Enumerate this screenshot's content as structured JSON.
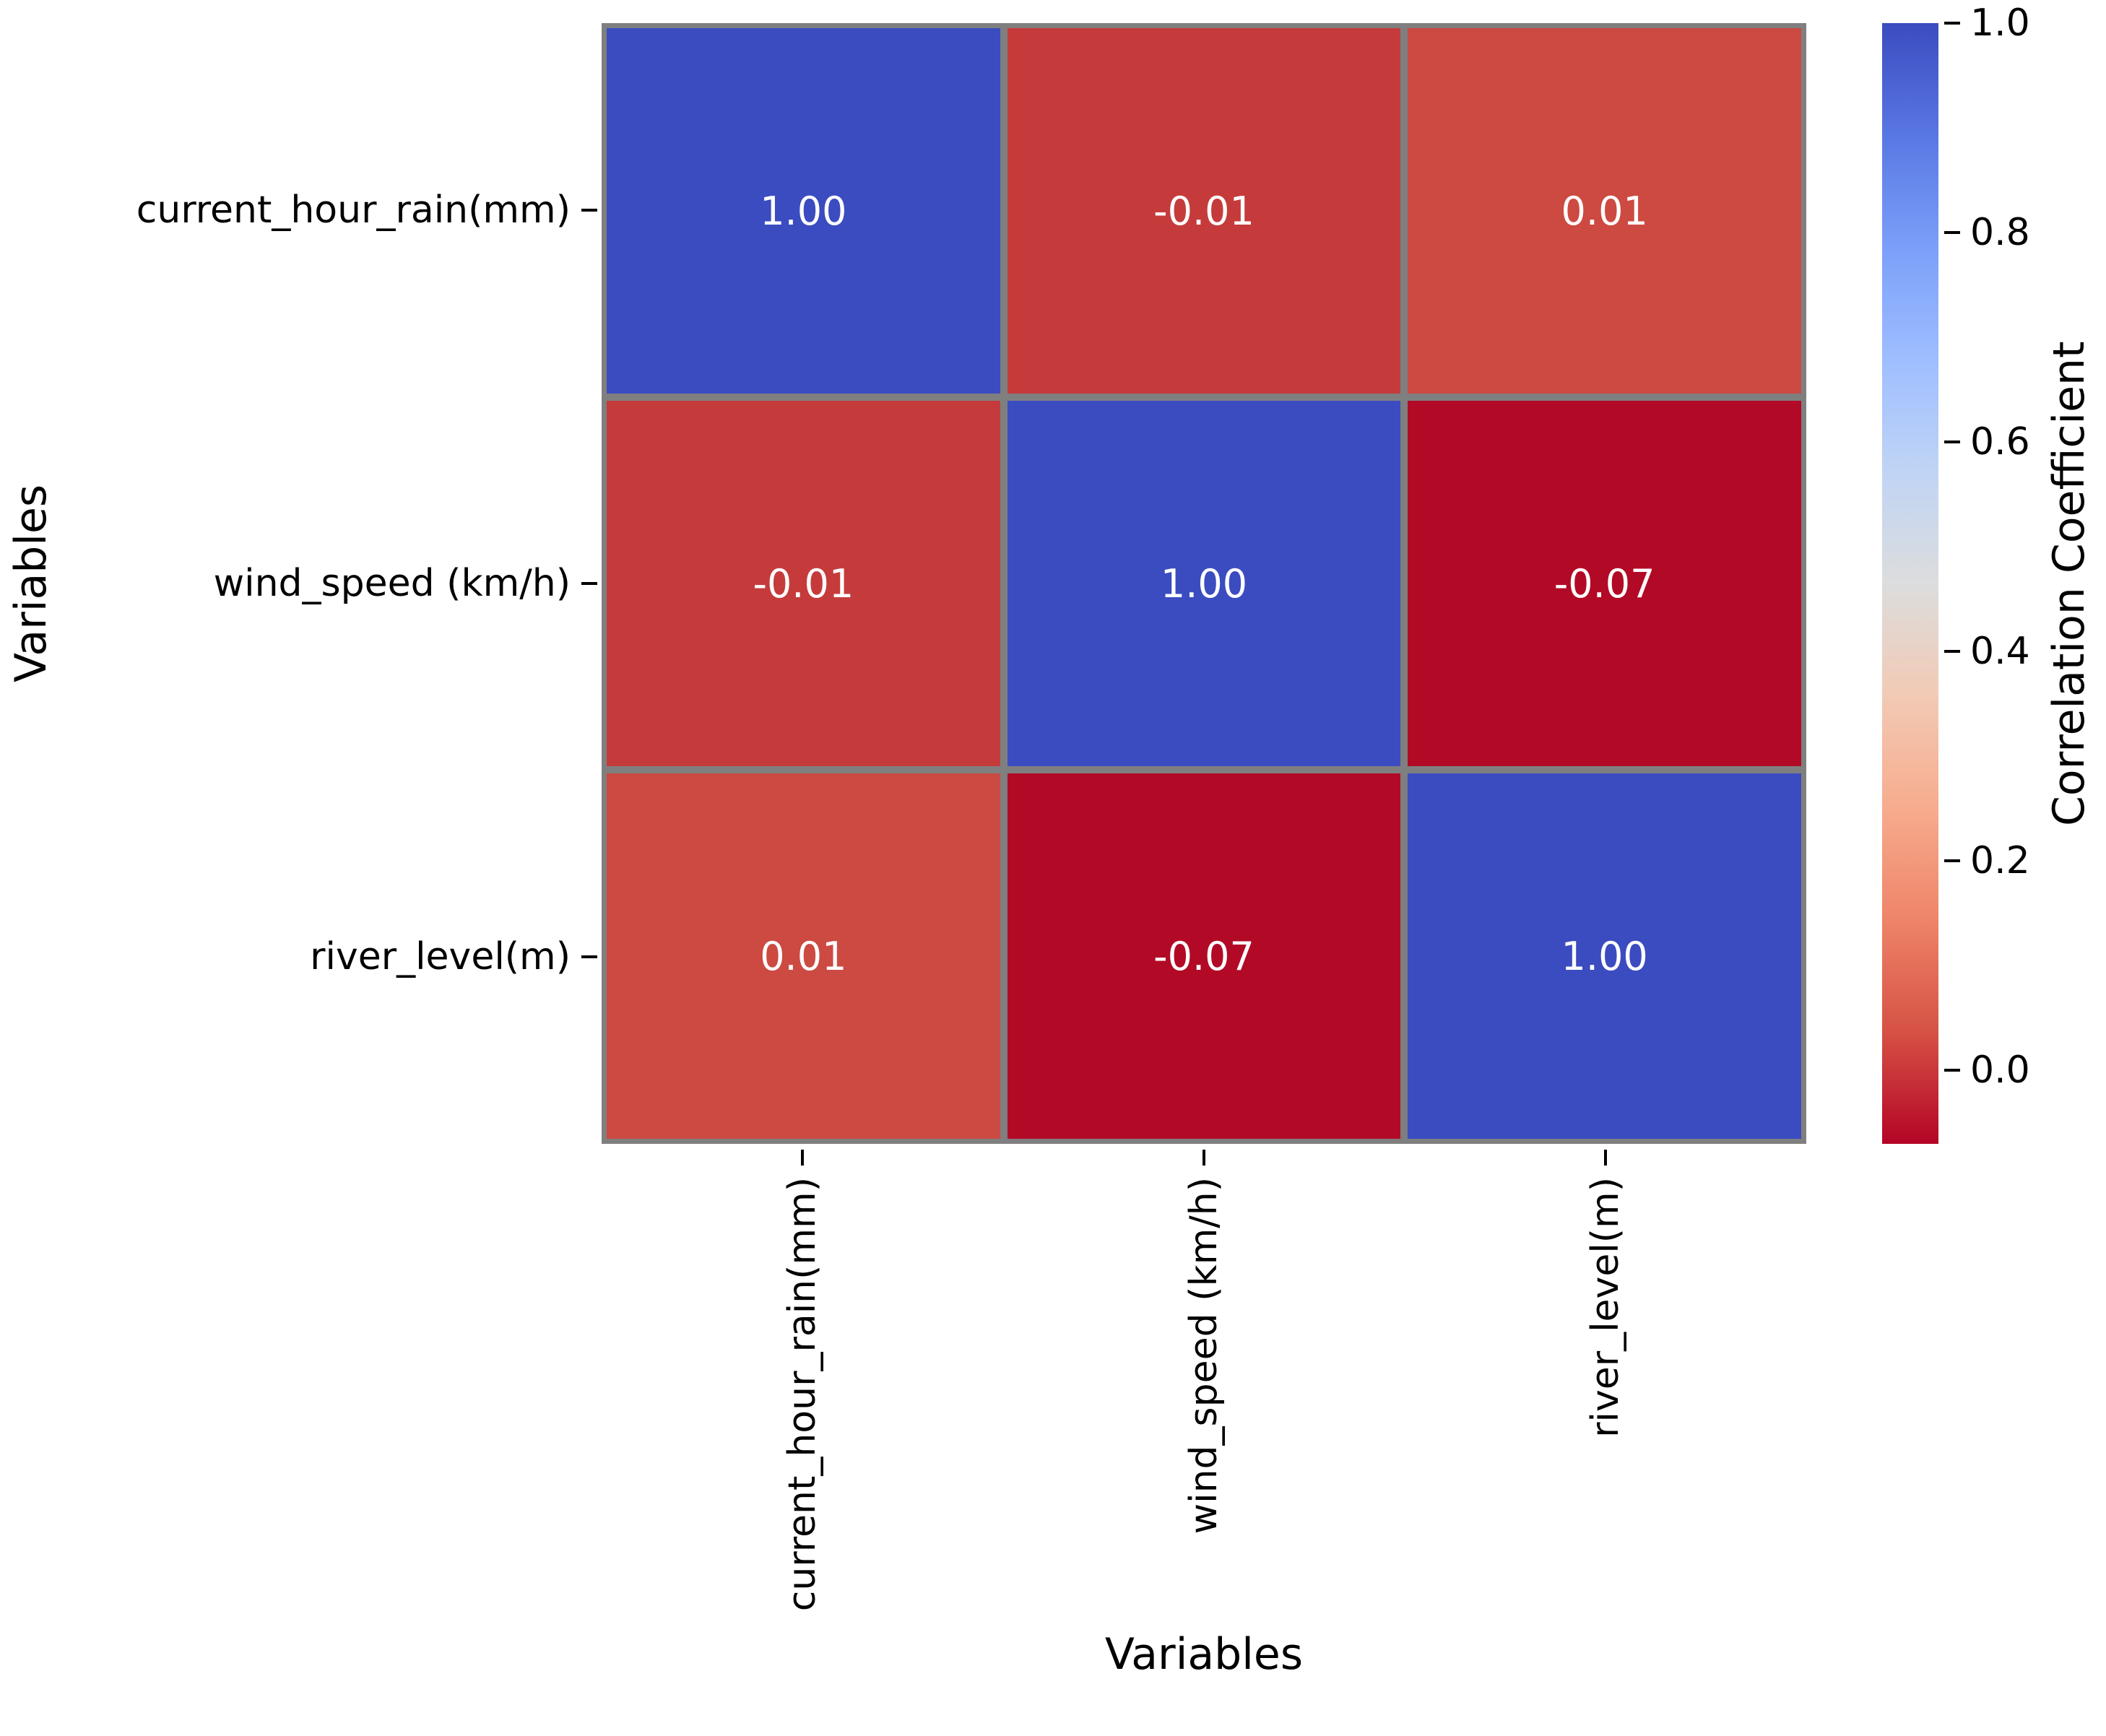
{
  "colors": {
    "background": "#ffffff",
    "grid_line": "#7f7f7f",
    "annotation_text": "#ffffff",
    "axis_text": "#000000"
  },
  "chart_data": {
    "type": "heatmap",
    "xlabel": "Variables",
    "ylabel": "Variables",
    "colorbar_label": "Correlation Coefficient",
    "categories": [
      "current_hour_rain(mm)",
      "wind_speed (km/h)",
      "river_level(m)"
    ],
    "matrix": [
      [
        1.0,
        -0.01,
        0.01
      ],
      [
        -0.01,
        1.0,
        -0.07
      ],
      [
        0.01,
        -0.07,
        1.0
      ]
    ],
    "cell_labels": [
      [
        "1.00",
        "-0.01",
        "0.01"
      ],
      [
        "-0.01",
        "1.00",
        "-0.07"
      ],
      [
        "0.01",
        "-0.07",
        "1.00"
      ]
    ],
    "cell_colors": [
      [
        "#3b4cc0",
        "#c53b3b",
        "#cc4a42"
      ],
      [
        "#c53b3b",
        "#3b4cc0",
        "#b20a26"
      ],
      [
        "#cc4a42",
        "#b20a26",
        "#3b4cc0"
      ]
    ],
    "vmin": -0.07,
    "vmax": 1.0,
    "colormap": "coolwarm_r",
    "colormap_stops": [
      "#3b4cc0",
      "#5977e3",
      "#7b9ff9",
      "#9ebeff",
      "#c0d4f5",
      "#dcdddd",
      "#f2cab5",
      "#f7ac8e",
      "#ee8468",
      "#d65244",
      "#b40426"
    ],
    "colorbar_ticks": [
      1.0,
      0.8,
      0.6,
      0.4,
      0.2,
      0.0
    ],
    "colorbar_tick_labels": [
      "1.0",
      "0.8",
      "0.6",
      "0.4",
      "0.2",
      "0.0"
    ],
    "legend_position": "right",
    "grid": false
  }
}
